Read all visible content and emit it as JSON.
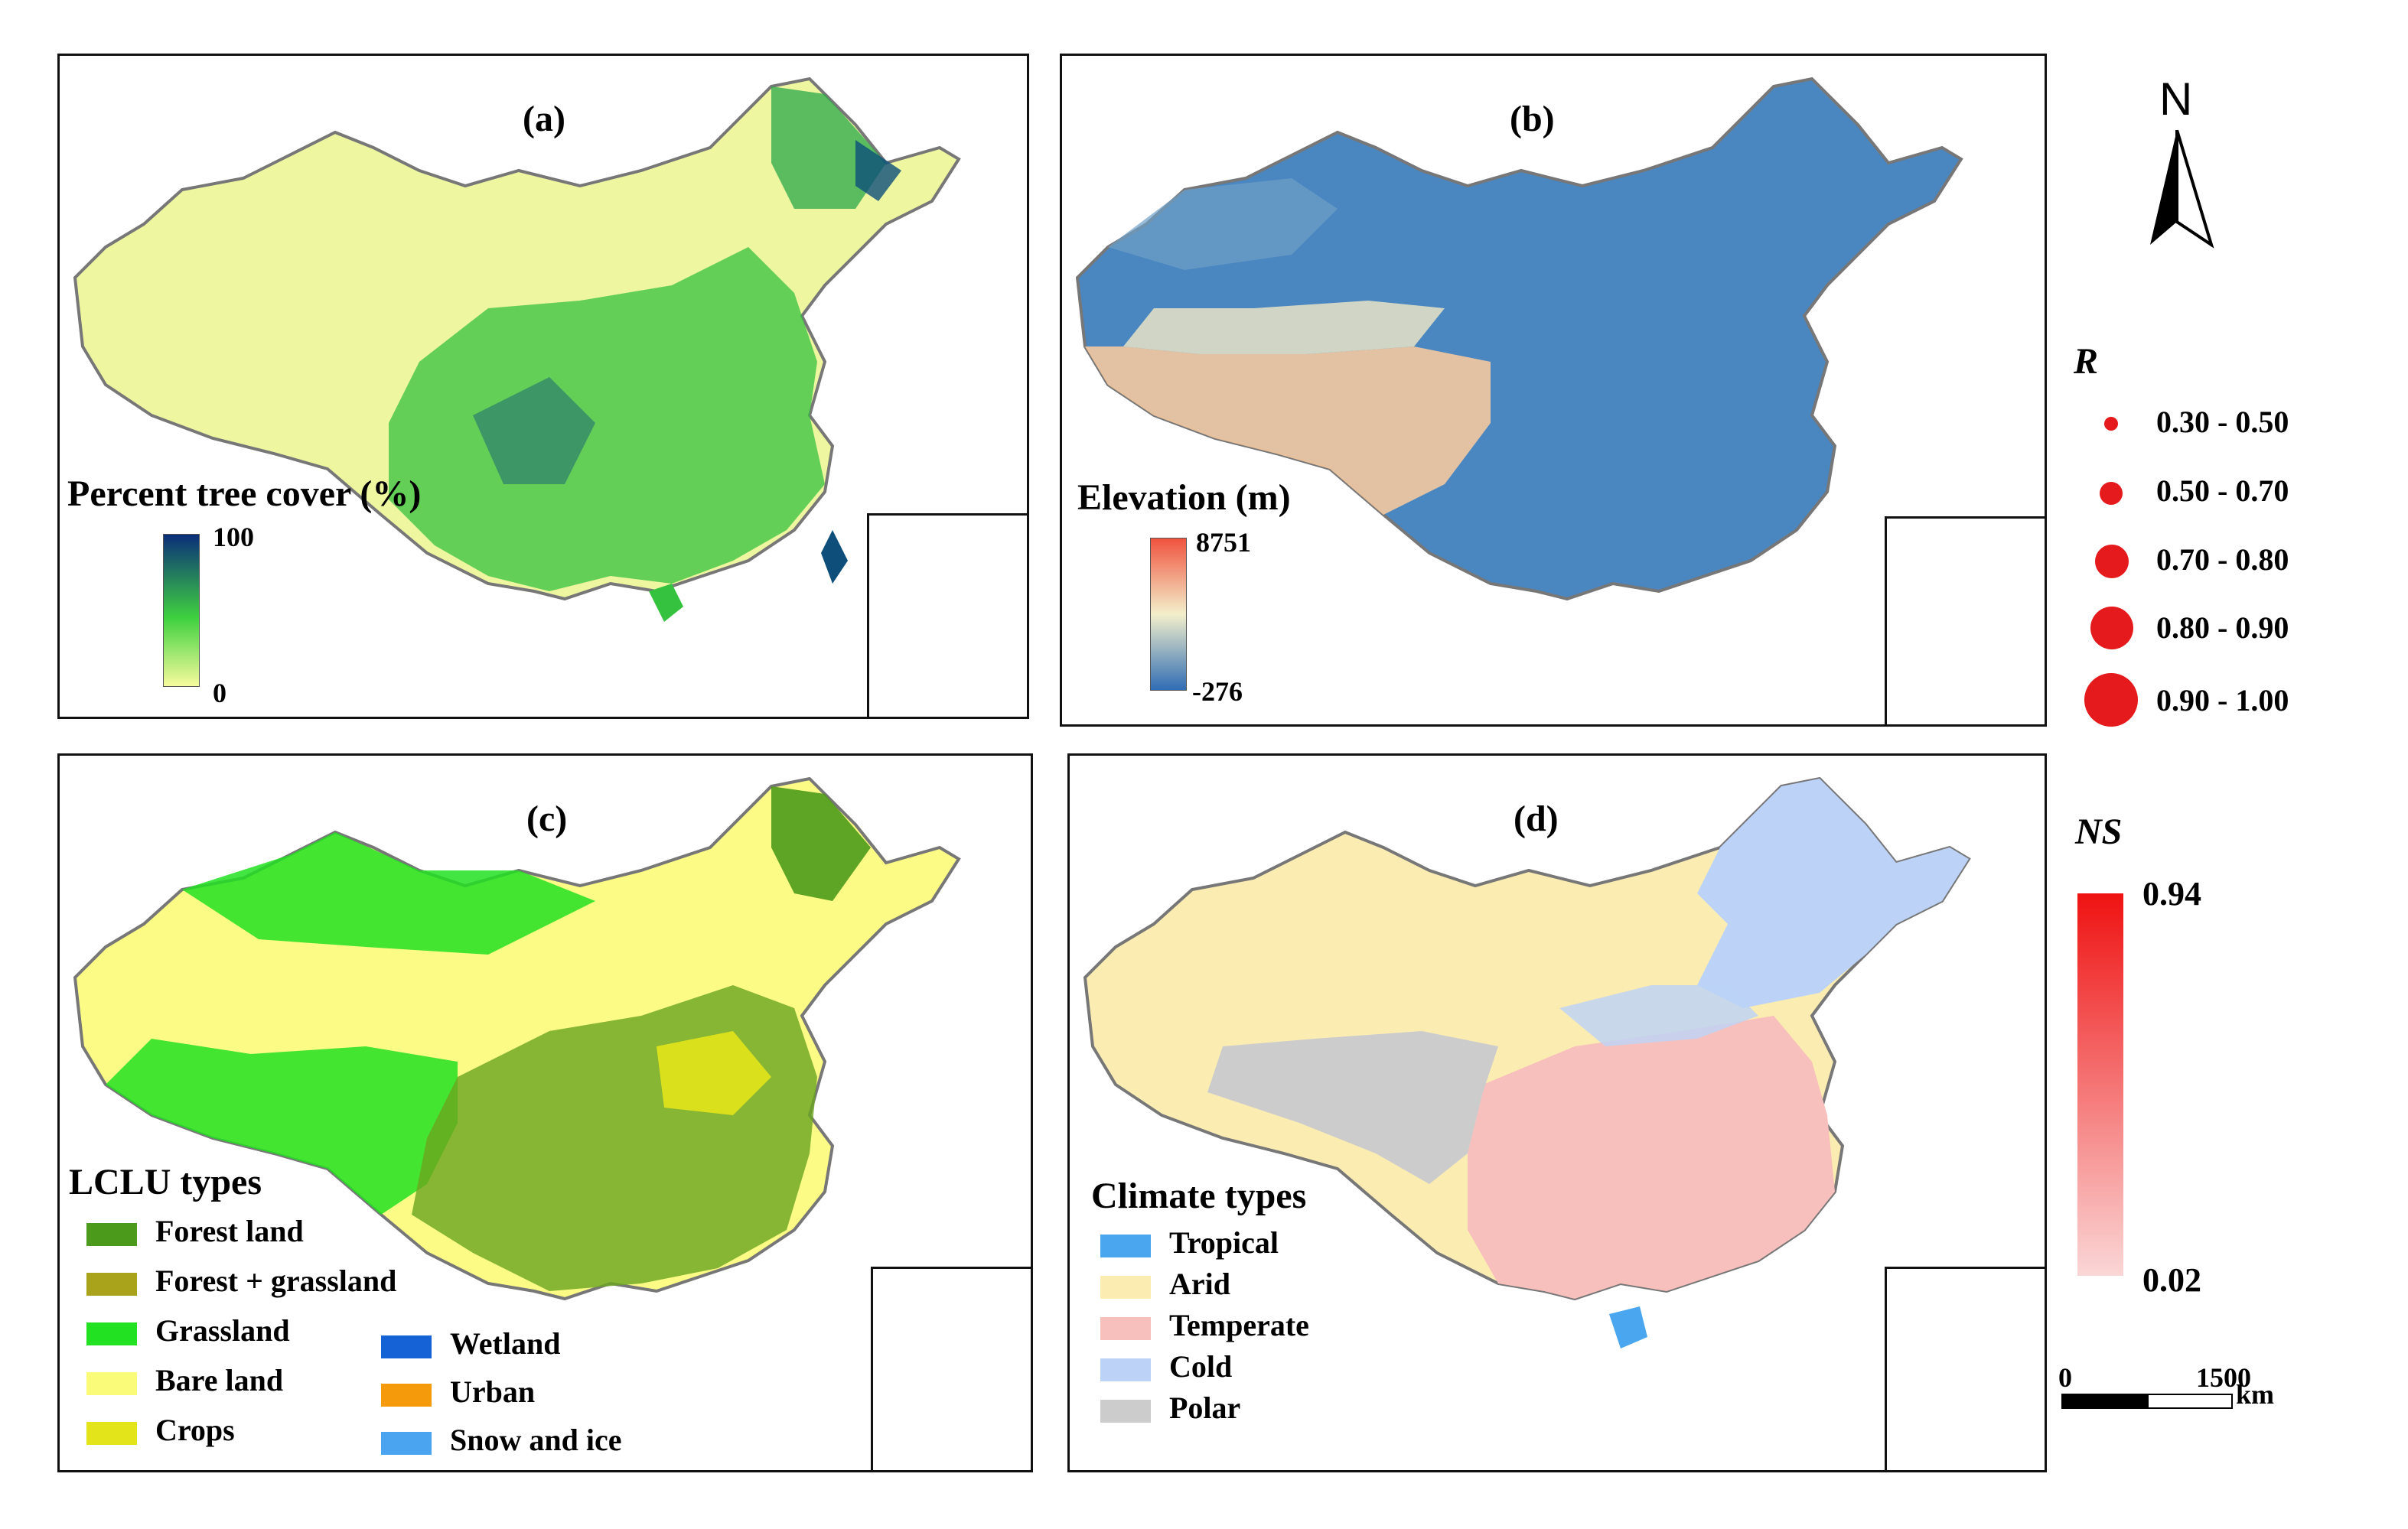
{
  "panels": {
    "a": {
      "label": "(a)",
      "legend_title": "Percent tree cover (%)",
      "scale_max": "100",
      "scale_min": "0",
      "colors": {
        "base": "#f2f7a0",
        "veg": "#2fbf3a",
        "dense": "#0d4f7a"
      }
    },
    "b": {
      "label": "(b)",
      "legend_title": "Elevation (m)",
      "scale_max": "8751",
      "scale_min": "-276",
      "colors": {
        "low": "#3a76b8",
        "mid": "#f3efcb",
        "high": "#f26a4f"
      }
    },
    "c": {
      "label": "(c)",
      "legend_title": "LCLU types",
      "items": [
        {
          "label": "Forest land",
          "color": "#4c9a1b"
        },
        {
          "label": "Forest + grassland",
          "color": "#a8a31a"
        },
        {
          "label": "Grassland",
          "color": "#22e022"
        },
        {
          "label": "Bare  land",
          "color": "#fbfb7a"
        },
        {
          "label": "Crops",
          "color": "#e4e41b"
        },
        {
          "label": "Wetland",
          "color": "#1561d6"
        },
        {
          "label": "Urban",
          "color": "#f59a0b"
        },
        {
          "label": "Snow and ice",
          "color": "#4aa4f0"
        }
      ]
    },
    "d": {
      "label": "(d)",
      "legend_title": "Climate types",
      "items": [
        {
          "label": "Tropical",
          "color": "#4aa7ef"
        },
        {
          "label": "Arid",
          "color": "#fbecb2"
        },
        {
          "label": "Temperate",
          "color": "#f8c0bc"
        },
        {
          "label": "Cold",
          "color": "#bcd3f7"
        },
        {
          "label": "Polar",
          "color": "#cccccc"
        }
      ]
    }
  },
  "north_arrow": {
    "label": "N"
  },
  "r_legend": {
    "title": "R",
    "classes": [
      {
        "label": "0.30 - 0.50",
        "size": 1
      },
      {
        "label": "0.50 - 0.70",
        "size": 2
      },
      {
        "label": "0.70 - 0.80",
        "size": 3
      },
      {
        "label": "0.80 - 0.90",
        "size": 4
      },
      {
        "label": "0.90 - 1.00",
        "size": 5
      }
    ],
    "color": "#e41a1c"
  },
  "ns_legend": {
    "title": "NS",
    "max": "0.94",
    "min": "0.02",
    "colors": {
      "max": "#f01616",
      "min": "#fbd2d2"
    }
  },
  "scale_bar": {
    "start": "0",
    "end": "1500",
    "unit": "km"
  }
}
